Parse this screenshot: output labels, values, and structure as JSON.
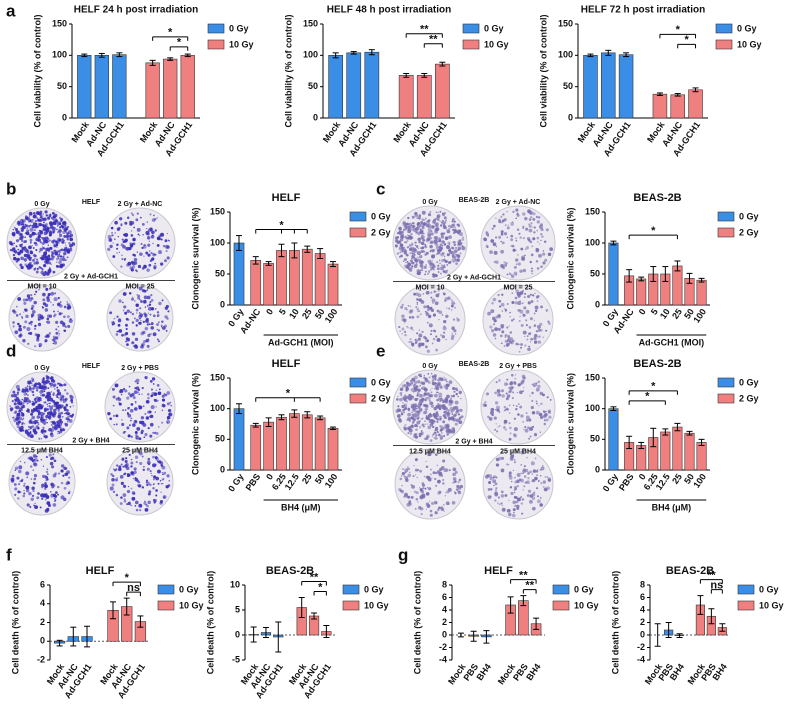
{
  "panels": [
    "a",
    "b",
    "c",
    "d",
    "e",
    "f",
    "g"
  ],
  "dishes": [
    {
      "title": "HELF",
      "labels": [
        "0 Gy",
        "2 Gy + Ad-NC",
        "2 Gy + Ad-GCH1",
        "MOI = 10",
        "MOI = 25"
      ],
      "color": "#3b2fb8"
    },
    {
      "title": "BEAS-2B",
      "labels": [
        "0 Gy",
        "2 Gy + Ad-NC",
        "2 Gy + Ad-GCH1",
        "MOI = 10",
        "MOI = 25"
      ],
      "color": "#7d6fb0"
    },
    {
      "title": "HELF",
      "labels": [
        "0 Gy",
        "2 Gy + PBS",
        "2 Gy + BH4",
        "12.5 μM BH4",
        "25 μM BH4"
      ],
      "color": "#3b2fb8"
    },
    {
      "title": "BEAS-2B",
      "labels": [
        "0 Gy",
        "2 Gy + PBS",
        "2 Gy + BH4",
        "12.5 μM BH4",
        "25 μM BH4"
      ],
      "color": "#7d6fb0"
    }
  ],
  "chart_data": [
    {
      "type": "bar",
      "title": "HELF 24 h post irradiation",
      "ylabel": "Cell viability (% of control)",
      "categories": [
        "Mock",
        "Ad-NC",
        "Ad-GCH1",
        "Mock",
        "Ad-NC",
        "Ad-GCH1"
      ],
      "series": [
        {
          "name": "0 Gy",
          "color": "#3a8ee6",
          "values": [
            100,
            100,
            101,
            null,
            null,
            null
          ],
          "errors": [
            2,
            3,
            3,
            null,
            null,
            null
          ]
        },
        {
          "name": "10 Gy",
          "color": "#f08080",
          "values": [
            null,
            null,
            null,
            88,
            94,
            100
          ],
          "errors": [
            null,
            null,
            null,
            4,
            2,
            2
          ]
        }
      ],
      "ylim": [
        0,
        150
      ],
      "yticks": [
        0,
        50,
        100,
        150
      ],
      "legend": "right",
      "annotations": [
        {
          "text": "*",
          "from": 4,
          "to": [
            5
          ]
        },
        {
          "text": "*",
          "from": 3,
          "to": [
            5
          ]
        }
      ]
    },
    {
      "type": "bar",
      "title": "HELF 48 h post irradiation",
      "ylabel": "Cell viability (% of control)",
      "categories": [
        "Mock",
        "Ad-NC",
        "Ad-GCH1",
        "Mock",
        "Ad-NC",
        "Ad-GCH1"
      ],
      "series": [
        {
          "name": "0 Gy",
          "color": "#3a8ee6",
          "values": [
            100,
            104,
            105,
            null,
            null,
            null
          ],
          "errors": [
            4,
            2,
            4,
            null,
            null,
            null
          ]
        },
        {
          "name": "10 Gy",
          "color": "#f08080",
          "values": [
            null,
            null,
            null,
            68,
            68,
            86
          ],
          "errors": [
            null,
            null,
            null,
            3,
            3,
            3
          ]
        }
      ],
      "ylim": [
        0,
        150
      ],
      "yticks": [
        0,
        50,
        100,
        150
      ],
      "legend": "right",
      "annotations": [
        {
          "text": "**",
          "from": 4,
          "to": [
            5
          ]
        },
        {
          "text": "**",
          "from": 3,
          "to": [
            5
          ]
        }
      ]
    },
    {
      "type": "bar",
      "title": "HELF 72 h post irradiation",
      "ylabel": "Cell viability (% of control)",
      "categories": [
        "Mock",
        "Ad-NC",
        "Ad-GCH1",
        "Mock",
        "Ad-NC",
        "Ad-GCH1"
      ],
      "series": [
        {
          "name": "0 Gy",
          "color": "#3a8ee6",
          "values": [
            100,
            104,
            101,
            null,
            null,
            null
          ],
          "errors": [
            2,
            4,
            3,
            null,
            null,
            null
          ]
        },
        {
          "name": "10 Gy",
          "color": "#f08080",
          "values": [
            null,
            null,
            null,
            38,
            37,
            45
          ],
          "errors": [
            null,
            null,
            null,
            2,
            2,
            3
          ]
        }
      ],
      "ylim": [
        0,
        150
      ],
      "yticks": [
        0,
        50,
        100,
        150
      ],
      "legend": "right",
      "annotations": [
        {
          "text": "*",
          "from": 4,
          "to": [
            5
          ]
        },
        {
          "text": "*",
          "from": 3,
          "to": [
            5
          ]
        }
      ]
    },
    {
      "type": "bar",
      "title": "HELF",
      "ylabel": "Clonogenic survival (%)",
      "xlabel": "Ad-GCH1 (MOI)",
      "categories": [
        "0 Gy",
        "Ad-NC",
        "0",
        "5",
        "10",
        "25",
        "50",
        "100"
      ],
      "series": [
        {
          "name": "0 Gy",
          "color": "#3a8ee6",
          "values": [
            100,
            null,
            null,
            null,
            null,
            null,
            null,
            null
          ],
          "errors": [
            12,
            null,
            null,
            null,
            null,
            null,
            null,
            null
          ]
        },
        {
          "name": "2 Gy",
          "color": "#f08080",
          "values": [
            null,
            72,
            67,
            88,
            88,
            90,
            83,
            66
          ],
          "errors": [
            null,
            6,
            3,
            10,
            12,
            5,
            8,
            4
          ]
        }
      ],
      "ylim": [
        0,
        150
      ],
      "yticks": [
        0,
        50,
        100,
        150
      ],
      "legend": "right",
      "annotations": [
        {
          "text": "*",
          "from": 1,
          "to": [
            3,
            4,
            5
          ]
        }
      ]
    },
    {
      "type": "bar",
      "title": "BEAS-2B",
      "ylabel": "Clonogenic survival (%)",
      "xlabel": "Ad-GCH1 (MOI)",
      "categories": [
        "0 Gy",
        "Ad-NC",
        "0",
        "5",
        "10",
        "25",
        "50",
        "100"
      ],
      "series": [
        {
          "name": "0 Gy",
          "color": "#3a8ee6",
          "values": [
            100,
            null,
            null,
            null,
            null,
            null,
            null,
            null
          ],
          "errors": [
            3,
            null,
            null,
            null,
            null,
            null,
            null,
            null
          ]
        },
        {
          "name": "2 Gy",
          "color": "#f08080",
          "values": [
            null,
            47,
            42,
            50,
            50,
            63,
            43,
            40
          ],
          "errors": [
            null,
            10,
            3,
            12,
            12,
            8,
            8,
            3
          ]
        }
      ],
      "ylim": [
        0,
        150
      ],
      "yticks": [
        0,
        50,
        100,
        150
      ],
      "legend": "right",
      "annotations": [
        {
          "text": "*",
          "from": 1,
          "to": [
            5
          ]
        }
      ]
    },
    {
      "type": "bar",
      "title": "HELF",
      "ylabel": "Clonogenic survival (%)",
      "xlabel": "BH4 (μM)",
      "categories": [
        "0 Gy",
        "PBS",
        "0",
        "6.25",
        "12.5",
        "25",
        "50",
        "100"
      ],
      "series": [
        {
          "name": "0 Gy",
          "color": "#3a8ee6",
          "values": [
            100,
            null,
            null,
            null,
            null,
            null,
            null,
            null
          ],
          "errors": [
            8,
            null,
            null,
            null,
            null,
            null,
            null,
            null
          ]
        },
        {
          "name": "2 Gy",
          "color": "#f08080",
          "values": [
            null,
            73,
            78,
            86,
            92,
            90,
            85,
            68
          ],
          "errors": [
            null,
            3,
            7,
            4,
            6,
            5,
            3,
            2
          ]
        }
      ],
      "ylim": [
        0,
        150
      ],
      "yticks": [
        0,
        50,
        100,
        150
      ],
      "legend": "right",
      "annotations": [
        {
          "text": "*",
          "from": 1,
          "to": [
            4,
            6
          ]
        }
      ]
    },
    {
      "type": "bar",
      "title": "BEAS-2B",
      "ylabel": "Clonogenic survival (%)",
      "xlabel": "BH4 (μM)",
      "categories": [
        "0 Gy",
        "PBS",
        "0",
        "6.25",
        "12.5",
        "25",
        "50",
        "100"
      ],
      "series": [
        {
          "name": "0 Gy",
          "color": "#3a8ee6",
          "values": [
            100,
            null,
            null,
            null,
            null,
            null,
            null,
            null
          ],
          "errors": [
            3,
            null,
            null,
            null,
            null,
            null,
            null,
            null
          ]
        },
        {
          "name": "2 Gy",
          "color": "#f08080",
          "values": [
            null,
            45,
            40,
            53,
            62,
            70,
            60,
            45
          ],
          "errors": [
            null,
            10,
            5,
            15,
            5,
            6,
            3,
            5
          ]
        }
      ],
      "ylim": [
        0,
        150
      ],
      "yticks": [
        0,
        50,
        100,
        150
      ],
      "legend": "right",
      "annotations": [
        {
          "text": "*",
          "from": 1,
          "to": [
            4
          ]
        },
        {
          "text": "*",
          "from": 1,
          "to": [
            5
          ]
        }
      ]
    },
    {
      "type": "bar",
      "title": "HELF",
      "ylabel": "Cell death (% of control)",
      "zero_line": true,
      "categories": [
        "Mock",
        "Ad-NC",
        "Ad-GCH1",
        "Mock",
        "Ad-NC",
        "Ad-GCH1"
      ],
      "series": [
        {
          "name": "0 Gy",
          "color": "#3a8ee6",
          "values": [
            -0.2,
            0.5,
            0.5,
            null,
            null,
            null
          ],
          "errors": [
            0.3,
            1.0,
            1.1,
            null,
            null,
            null
          ]
        },
        {
          "name": "10 Gy",
          "color": "#f08080",
          "values": [
            null,
            null,
            null,
            3.3,
            3.7,
            2.1
          ],
          "errors": [
            null,
            null,
            null,
            0.9,
            0.9,
            0.6
          ]
        }
      ],
      "ylim": [
        -2,
        6
      ],
      "yticks": [
        -2,
        0,
        2,
        4,
        6
      ],
      "legend": "right",
      "annotations": [
        {
          "text": "ns",
          "from": 4,
          "to": [
            5
          ]
        },
        {
          "text": "*",
          "from": 3,
          "to": [
            5
          ]
        }
      ]
    },
    {
      "type": "bar",
      "title": "BEAS-2B",
      "ylabel": "Cell death (% of control)",
      "zero_line": true,
      "categories": [
        "Mock",
        "Ad-NC",
        "Ad-GCH1",
        "Mock",
        "Ad-NC",
        "Ad-GCH1"
      ],
      "series": [
        {
          "name": "0 Gy",
          "color": "#3a8ee6",
          "values": [
            0.1,
            0.5,
            -0.4,
            null,
            null,
            null
          ],
          "errors": [
            1.5,
            1.0,
            3.0,
            null,
            null,
            null
          ]
        },
        {
          "name": "10 Gy",
          "color": "#f08080",
          "values": [
            null,
            null,
            null,
            5.5,
            3.8,
            0.7
          ],
          "errors": [
            null,
            null,
            null,
            2.0,
            0.6,
            1.2
          ]
        }
      ],
      "ylim": [
        -5,
        10
      ],
      "yticks": [
        -5,
        0,
        5,
        10
      ],
      "legend": "right",
      "annotations": [
        {
          "text": "*",
          "from": 4,
          "to": [
            5
          ]
        },
        {
          "text": "**",
          "from": 3,
          "to": [
            5
          ]
        }
      ]
    },
    {
      "type": "bar",
      "title": "HELF",
      "ylabel": "Cell death (% of control)",
      "zero_line": true,
      "categories": [
        "Mock",
        "PBS",
        "BH4",
        "Mock",
        "PBS",
        "BH4"
      ],
      "series": [
        {
          "name": "0 Gy",
          "color": "#3a8ee6",
          "values": [
            0,
            -0.2,
            -0.3,
            null,
            null,
            null
          ],
          "errors": [
            0.3,
            0.8,
            1.0,
            null,
            null,
            null
          ]
        },
        {
          "name": "10 Gy",
          "color": "#f08080",
          "values": [
            null,
            null,
            null,
            4.8,
            5.5,
            1.8
          ],
          "errors": [
            null,
            null,
            null,
            1.3,
            0.8,
            0.9
          ]
        }
      ],
      "ylim": [
        -4,
        8
      ],
      "yticks": [
        -4,
        -2,
        0,
        2,
        4,
        6,
        8
      ],
      "legend": "right",
      "annotations": [
        {
          "text": "**",
          "from": 4,
          "to": [
            5
          ]
        },
        {
          "text": "**",
          "from": 3,
          "to": [
            5
          ]
        }
      ]
    },
    {
      "type": "bar",
      "title": "BEAS-2B",
      "ylabel": "Cell death (% of control)",
      "zero_line": true,
      "categories": [
        "Mock",
        "PBS",
        "BH4",
        "Mock",
        "PBS",
        "BH4"
      ],
      "series": [
        {
          "name": "0 Gy",
          "color": "#3a8ee6",
          "values": [
            0,
            0.8,
            -0.1,
            null,
            null,
            null
          ],
          "errors": [
            1.8,
            1.2,
            0.3,
            null,
            null,
            null
          ]
        },
        {
          "name": "10 Gy",
          "color": "#f08080",
          "values": [
            null,
            null,
            null,
            4.8,
            3.0,
            1.2
          ],
          "errors": [
            null,
            null,
            null,
            1.5,
            1.2,
            0.6
          ]
        }
      ],
      "ylim": [
        -4,
        8
      ],
      "yticks": [
        -4,
        -2,
        0,
        2,
        4,
        6,
        8
      ],
      "legend": "right",
      "annotations": [
        {
          "text": "ns",
          "from": 4,
          "to": [
            5
          ]
        },
        {
          "text": "**",
          "from": 3,
          "to": [
            5
          ]
        }
      ]
    }
  ]
}
